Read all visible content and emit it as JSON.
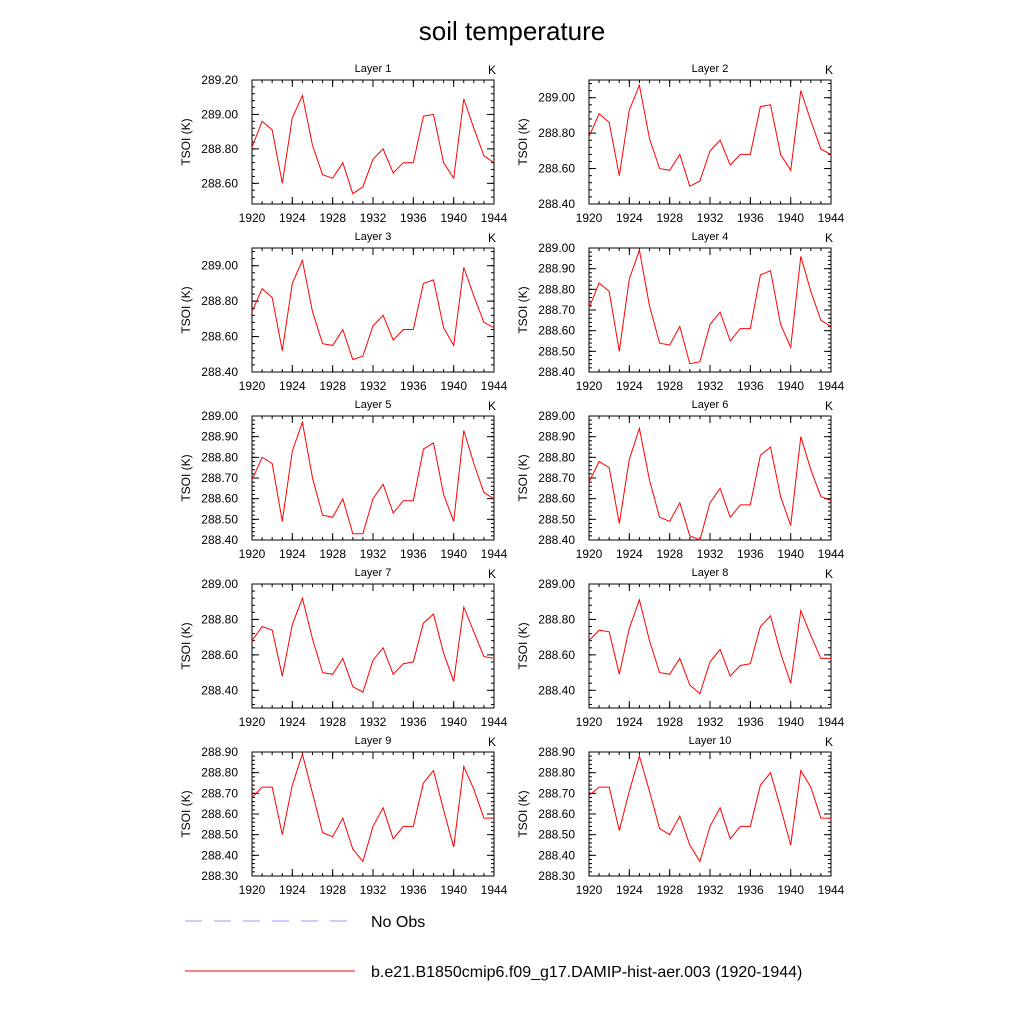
{
  "title": "soil temperature",
  "legend": [
    {
      "label": "No Obs",
      "color": "#9999ff",
      "dash": true
    },
    {
      "label": "b.e21.B1850cmip6.f09_g17.DAMIP-hist-aer.003 (1920-1944)",
      "color": "#ff0000",
      "dash": false
    }
  ],
  "chart_data": [
    {
      "type": "line",
      "title": "Layer 1",
      "unit": "K",
      "ylabel": "TSOI  (K)",
      "xlim": [
        1920,
        1944
      ],
      "ylim": [
        288.48,
        289.2
      ],
      "xticks": [
        1920,
        1924,
        1928,
        1932,
        1936,
        1940,
        1944
      ],
      "yticks": [
        "288.60",
        "288.80",
        "289.00",
        "289.20"
      ],
      "x": [
        1920,
        1921,
        1922,
        1923,
        1924,
        1925,
        1926,
        1927,
        1928,
        1929,
        1930,
        1931,
        1932,
        1933,
        1934,
        1935,
        1936,
        1937,
        1938,
        1939,
        1940,
        1941,
        1942,
        1943,
        1944
      ],
      "series": [
        {
          "values": [
            288.81,
            288.96,
            288.91,
            288.6,
            288.98,
            289.11,
            288.82,
            288.65,
            288.63,
            288.72,
            288.54,
            288.58,
            288.74,
            288.8,
            288.66,
            288.72,
            288.72,
            288.99,
            289.0,
            288.72,
            288.63,
            289.09,
            288.92,
            288.76,
            288.72
          ]
        }
      ]
    },
    {
      "type": "line",
      "title": "Layer 2",
      "unit": "K",
      "ylabel": "TSOI  (K)",
      "xlim": [
        1920,
        1944
      ],
      "ylim": [
        288.4,
        289.1
      ],
      "xticks": [
        1920,
        1924,
        1928,
        1932,
        1936,
        1940,
        1944
      ],
      "yticks": [
        "288.40",
        "288.60",
        "288.80",
        "289.00"
      ],
      "x": [
        1920,
        1921,
        1922,
        1923,
        1924,
        1925,
        1926,
        1927,
        1928,
        1929,
        1930,
        1931,
        1932,
        1933,
        1934,
        1935,
        1936,
        1937,
        1938,
        1939,
        1940,
        1941,
        1942,
        1943,
        1944
      ],
      "series": [
        {
          "values": [
            288.78,
            288.91,
            288.86,
            288.56,
            288.93,
            289.07,
            288.77,
            288.6,
            288.59,
            288.68,
            288.5,
            288.53,
            288.7,
            288.76,
            288.62,
            288.68,
            288.68,
            288.95,
            288.96,
            288.68,
            288.59,
            289.04,
            288.87,
            288.71,
            288.68
          ]
        }
      ]
    },
    {
      "type": "line",
      "title": "Layer 3",
      "unit": "K",
      "ylabel": "TSOI  (K)",
      "xlim": [
        1920,
        1944
      ],
      "ylim": [
        288.4,
        289.1
      ],
      "xticks": [
        1920,
        1924,
        1928,
        1932,
        1936,
        1940,
        1944
      ],
      "yticks": [
        "288.40",
        "288.60",
        "288.80",
        "289.00"
      ],
      "x": [
        1920,
        1921,
        1922,
        1923,
        1924,
        1925,
        1926,
        1927,
        1928,
        1929,
        1930,
        1931,
        1932,
        1933,
        1934,
        1935,
        1936,
        1937,
        1938,
        1939,
        1940,
        1941,
        1942,
        1943,
        1944
      ],
      "series": [
        {
          "values": [
            288.74,
            288.87,
            288.82,
            288.52,
            288.9,
            289.03,
            288.74,
            288.56,
            288.55,
            288.64,
            288.47,
            288.49,
            288.66,
            288.72,
            288.58,
            288.64,
            288.64,
            288.9,
            288.92,
            288.65,
            288.55,
            288.99,
            288.83,
            288.68,
            288.65
          ]
        }
      ]
    },
    {
      "type": "line",
      "title": "Layer 4",
      "unit": "K",
      "ylabel": "TSOI  (K)",
      "xlim": [
        1920,
        1944
      ],
      "ylim": [
        288.4,
        289.0
      ],
      "xticks": [
        1920,
        1924,
        1928,
        1932,
        1936,
        1940,
        1944
      ],
      "yticks": [
        "288.40",
        "288.50",
        "288.60",
        "288.70",
        "288.80",
        "288.90",
        "289.00"
      ],
      "x": [
        1920,
        1921,
        1922,
        1923,
        1924,
        1925,
        1926,
        1927,
        1928,
        1929,
        1930,
        1931,
        1932,
        1933,
        1934,
        1935,
        1936,
        1937,
        1938,
        1939,
        1940,
        1941,
        1942,
        1943,
        1944
      ],
      "series": [
        {
          "values": [
            288.71,
            288.83,
            288.79,
            288.5,
            288.85,
            288.99,
            288.72,
            288.54,
            288.53,
            288.62,
            288.44,
            288.45,
            288.63,
            288.69,
            288.55,
            288.61,
            288.61,
            288.87,
            288.89,
            288.63,
            288.52,
            288.96,
            288.79,
            288.65,
            288.62
          ]
        }
      ]
    },
    {
      "type": "line",
      "title": "Layer 5",
      "unit": "K",
      "ylabel": "TSOI  (K)",
      "xlim": [
        1920,
        1944
      ],
      "ylim": [
        288.4,
        289.0
      ],
      "xticks": [
        1920,
        1924,
        1928,
        1932,
        1936,
        1940,
        1944
      ],
      "yticks": [
        "288.40",
        "288.50",
        "288.60",
        "288.70",
        "288.80",
        "288.90",
        "289.00"
      ],
      "x": [
        1920,
        1921,
        1922,
        1923,
        1924,
        1925,
        1926,
        1927,
        1928,
        1929,
        1930,
        1931,
        1932,
        1933,
        1934,
        1935,
        1936,
        1937,
        1938,
        1939,
        1940,
        1941,
        1942,
        1943,
        1944
      ],
      "series": [
        {
          "values": [
            288.69,
            288.8,
            288.77,
            288.49,
            288.83,
            288.97,
            288.7,
            288.52,
            288.51,
            288.6,
            288.43,
            288.43,
            288.6,
            288.67,
            288.53,
            288.59,
            288.59,
            288.84,
            288.87,
            288.62,
            288.49,
            288.93,
            288.77,
            288.63,
            288.6
          ]
        }
      ]
    },
    {
      "type": "line",
      "title": "Layer 6",
      "unit": "K",
      "ylabel": "TSOI  (K)",
      "xlim": [
        1920,
        1944
      ],
      "ylim": [
        288.4,
        289.0
      ],
      "xticks": [
        1920,
        1924,
        1928,
        1932,
        1936,
        1940,
        1944
      ],
      "yticks": [
        "288.40",
        "288.50",
        "288.60",
        "288.70",
        "288.80",
        "288.90",
        "289.00"
      ],
      "x": [
        1920,
        1921,
        1922,
        1923,
        1924,
        1925,
        1926,
        1927,
        1928,
        1929,
        1930,
        1931,
        1932,
        1933,
        1934,
        1935,
        1936,
        1937,
        1938,
        1939,
        1940,
        1941,
        1942,
        1943,
        1944
      ],
      "series": [
        {
          "values": [
            288.68,
            288.78,
            288.75,
            288.48,
            288.79,
            288.94,
            288.69,
            288.51,
            288.49,
            288.58,
            288.42,
            288.4,
            288.58,
            288.65,
            288.51,
            288.57,
            288.57,
            288.81,
            288.85,
            288.61,
            288.47,
            288.9,
            288.74,
            288.61,
            288.59
          ]
        }
      ]
    },
    {
      "type": "line",
      "title": "Layer 7",
      "unit": "K",
      "ylabel": "TSOI  (K)",
      "xlim": [
        1920,
        1944
      ],
      "ylim": [
        288.3,
        289.0
      ],
      "xticks": [
        1920,
        1924,
        1928,
        1932,
        1936,
        1940,
        1944
      ],
      "yticks": [
        "288.40",
        "288.60",
        "288.80",
        "289.00"
      ],
      "x": [
        1920,
        1921,
        1922,
        1923,
        1924,
        1925,
        1926,
        1927,
        1928,
        1929,
        1930,
        1931,
        1932,
        1933,
        1934,
        1935,
        1936,
        1937,
        1938,
        1939,
        1940,
        1941,
        1942,
        1943,
        1944
      ],
      "series": [
        {
          "values": [
            288.68,
            288.76,
            288.74,
            288.48,
            288.77,
            288.92,
            288.69,
            288.5,
            288.49,
            288.58,
            288.42,
            288.39,
            288.57,
            288.64,
            288.49,
            288.55,
            288.56,
            288.78,
            288.83,
            288.61,
            288.45,
            288.87,
            288.73,
            288.59,
            288.58
          ]
        }
      ]
    },
    {
      "type": "line",
      "title": "Layer 8",
      "unit": "K",
      "ylabel": "TSOI  (K)",
      "xlim": [
        1920,
        1944
      ],
      "ylim": [
        288.3,
        289.0
      ],
      "xticks": [
        1920,
        1924,
        1928,
        1932,
        1936,
        1940,
        1944
      ],
      "yticks": [
        "288.40",
        "288.60",
        "288.80",
        "289.00"
      ],
      "x": [
        1920,
        1921,
        1922,
        1923,
        1924,
        1925,
        1926,
        1927,
        1928,
        1929,
        1930,
        1931,
        1932,
        1933,
        1934,
        1935,
        1936,
        1937,
        1938,
        1939,
        1940,
        1941,
        1942,
        1943,
        1944
      ],
      "series": [
        {
          "values": [
            288.68,
            288.74,
            288.73,
            288.49,
            288.75,
            288.91,
            288.68,
            288.5,
            288.49,
            288.58,
            288.43,
            288.38,
            288.56,
            288.63,
            288.48,
            288.54,
            288.55,
            288.76,
            288.82,
            288.61,
            288.44,
            288.85,
            288.71,
            288.58,
            288.58
          ]
        }
      ]
    },
    {
      "type": "line",
      "title": "Layer 9",
      "unit": "K",
      "ylabel": "TSOI  (K)",
      "xlim": [
        1920,
        1944
      ],
      "ylim": [
        288.3,
        288.9
      ],
      "xticks": [
        1920,
        1924,
        1928,
        1932,
        1936,
        1940,
        1944
      ],
      "yticks": [
        "288.30",
        "288.40",
        "288.50",
        "288.60",
        "288.70",
        "288.80",
        "288.90"
      ],
      "x": [
        1920,
        1921,
        1922,
        1923,
        1924,
        1925,
        1926,
        1927,
        1928,
        1929,
        1930,
        1931,
        1932,
        1933,
        1934,
        1935,
        1936,
        1937,
        1938,
        1939,
        1940,
        1941,
        1942,
        1943,
        1944
      ],
      "series": [
        {
          "values": [
            288.68,
            288.73,
            288.73,
            288.5,
            288.74,
            288.89,
            288.7,
            288.51,
            288.49,
            288.58,
            288.43,
            288.37,
            288.54,
            288.63,
            288.48,
            288.54,
            288.54,
            288.75,
            288.81,
            288.62,
            288.44,
            288.83,
            288.72,
            288.58,
            288.58
          ]
        }
      ]
    },
    {
      "type": "line",
      "title": "Layer 10",
      "unit": "K",
      "ylabel": "TSOI  (K)",
      "xlim": [
        1920,
        1944
      ],
      "ylim": [
        288.3,
        288.9
      ],
      "xticks": [
        1920,
        1924,
        1928,
        1932,
        1936,
        1940,
        1944
      ],
      "yticks": [
        "288.30",
        "288.40",
        "288.50",
        "288.60",
        "288.70",
        "288.80",
        "288.90"
      ],
      "x": [
        1920,
        1921,
        1922,
        1923,
        1924,
        1925,
        1926,
        1927,
        1928,
        1929,
        1930,
        1931,
        1932,
        1933,
        1934,
        1935,
        1936,
        1937,
        1938,
        1939,
        1940,
        1941,
        1942,
        1943,
        1944
      ],
      "series": [
        {
          "values": [
            288.69,
            288.73,
            288.73,
            288.52,
            288.71,
            288.88,
            288.71,
            288.53,
            288.5,
            288.59,
            288.45,
            288.37,
            288.54,
            288.63,
            288.48,
            288.54,
            288.54,
            288.74,
            288.8,
            288.63,
            288.45,
            288.81,
            288.73,
            288.58,
            288.58
          ]
        }
      ]
    }
  ]
}
